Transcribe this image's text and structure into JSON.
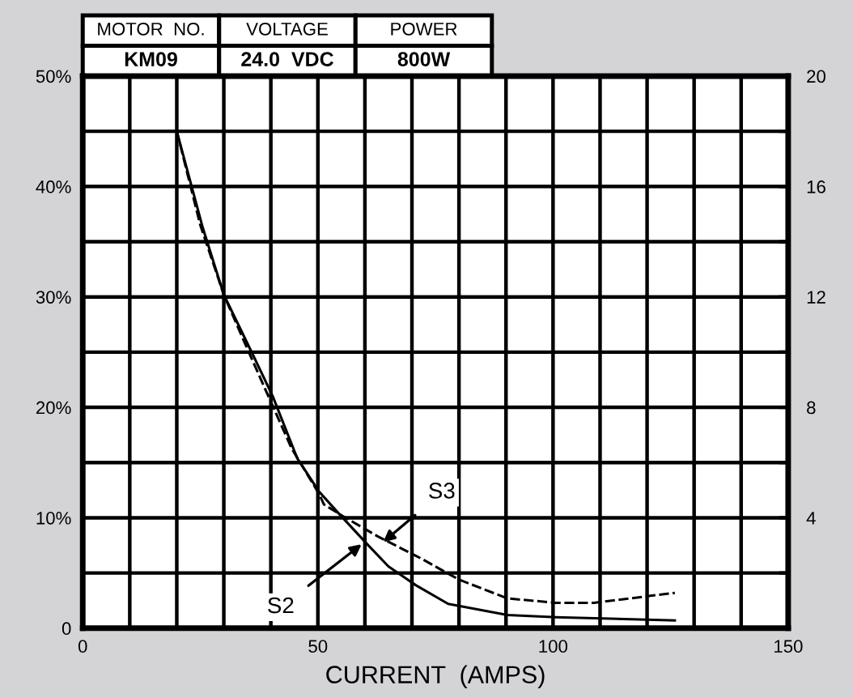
{
  "chart_data": {
    "type": "line",
    "xlabel": "CURRENT  (AMPS)",
    "series": [
      {
        "color": "#000000",
        "line_style": "solid",
        "x": [
          20,
          25.5,
          30,
          35.8,
          40.4,
          45.6,
          50.2,
          54.2,
          60.5,
          65,
          70.8,
          77.7,
          90.3,
          100.6,
          125.9
        ],
        "values": [
          45,
          36.3,
          30.2,
          25.1,
          21,
          15.4,
          12.4,
          10.5,
          7.6,
          5.6,
          3.9,
          2.2,
          1.2,
          1.0,
          0.7
        ]
      },
      {
        "color": "#000000",
        "line_style": "dashed",
        "x": [
          20,
          25,
          30,
          35,
          40,
          44.4,
          50.2,
          51.3,
          55.9,
          62.8,
          72,
          80,
          90.3,
          100.6,
          108.7,
          125.9
        ],
        "values": [
          45,
          36.5,
          30.2,
          25.3,
          20.5,
          16.3,
          12.2,
          11.2,
          10,
          8.3,
          6.3,
          4.4,
          2.7,
          2.3,
          2.3,
          3.2
        ]
      }
    ],
    "annotations": [
      {
        "text": "S3",
        "x": 63.9,
        "y": 7.8
      },
      {
        "text": "S2",
        "x": 59.3,
        "y": 7.6
      },
      "MOTOR  NO.",
      "VOLTAGE",
      "POWER",
      "KM09",
      "24.0  VDC",
      "800W"
    ],
    "xlim": [
      0,
      150
    ],
    "xticks": [
      0,
      {
        "value": 10,
        "label": null
      },
      {
        "value": 20,
        "label": null
      },
      {
        "value": 30,
        "label": null
      },
      {
        "value": 40,
        "label": null
      },
      50,
      {
        "value": 60,
        "label": null
      },
      {
        "value": 70,
        "label": null
      },
      {
        "value": 80,
        "label": null
      },
      {
        "value": 90,
        "label": null
      },
      100,
      {
        "value": 110,
        "label": null
      },
      {
        "value": 120,
        "label": null
      },
      {
        "value": 130,
        "label": null
      },
      {
        "value": 140,
        "label": null
      },
      150
    ],
    "ylim": [
      0,
      50
    ],
    "yticks": [
      0,
      {
        "value": 5,
        "label": null
      },
      {
        "value": 10,
        "label": "10%"
      },
      {
        "value": 15,
        "label": null
      },
      {
        "value": 20,
        "label": "20%"
      },
      {
        "value": 25,
        "label": null
      },
      {
        "value": 30,
        "label": "30%"
      },
      {
        "value": 35,
        "label": null
      },
      {
        "value": 40,
        "label": "40%"
      },
      {
        "value": 45,
        "label": null
      },
      {
        "value": 50,
        "label": "50%"
      }
    ],
    "y2lim": [
      0,
      20
    ],
    "y2ticks": [
      {
        "value": 0,
        "label": null
      },
      {
        "value": 2,
        "label": null
      },
      4,
      {
        "value": 6,
        "label": null
      },
      8,
      {
        "value": 10,
        "label": null
      },
      12,
      {
        "value": 14,
        "label": null
      },
      16,
      {
        "value": 18,
        "label": null
      },
      20
    ],
    "grid": true,
    "legend": false,
    "marker": "none"
  }
}
